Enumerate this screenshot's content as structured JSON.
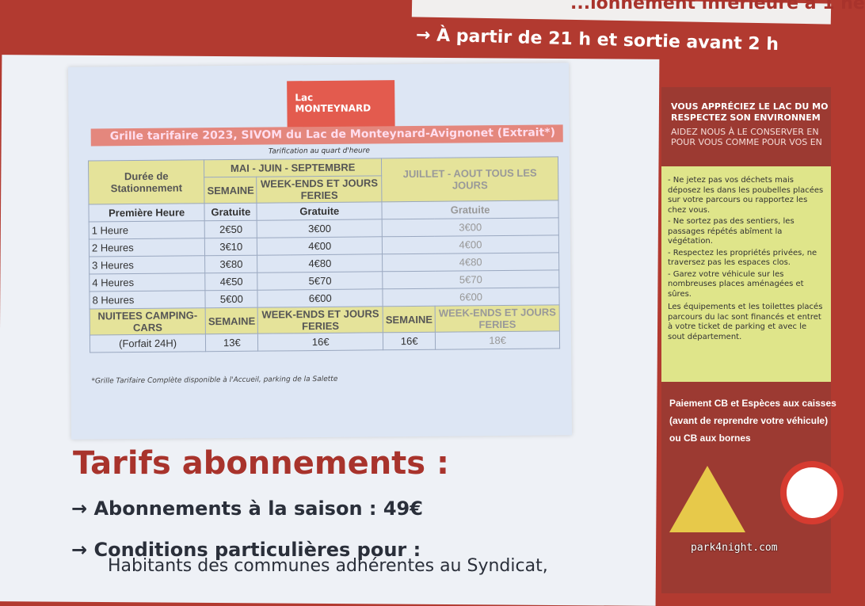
{
  "top": {
    "line1": "...ionnement inférieure à 1 he",
    "line2": "→ À partir de 21 h et sortie avant 2 h"
  },
  "sheet": {
    "logo": [
      "Lac",
      "MONTEYNARD"
    ],
    "title": "Grille tarifaire 2023, SIVOM du Lac de Monteynard-Avignonet (Extrait*)",
    "subtitle": "Tarification au quart d'heure",
    "h_duration": "Durée de Stationnement",
    "h_season1": "MAI - JUIN - SEPTEMBRE",
    "h_semaine": "SEMAINE",
    "h_weekend": "WEEK-ENDS ET JOURS FERIES",
    "h_season2": "JUILLET - AOUT TOUS LES JOURS",
    "rows": [
      [
        "Première Heure",
        "Gratuite",
        "Gratuite",
        "Gratuite"
      ],
      [
        "1 Heure",
        "2€50",
        "3€00",
        "3€00"
      ],
      [
        "2 Heures",
        "3€10",
        "4€00",
        "4€00"
      ],
      [
        "3 Heures",
        "3€80",
        "4€80",
        "4€80"
      ],
      [
        "4 Heures",
        "4€50",
        "5€70",
        "5€70"
      ],
      [
        "8 Heures",
        "5€00",
        "6€00",
        "6€00"
      ]
    ],
    "night_label": "NUITEES CAMPING-CARS",
    "night_forfait": "(Forfait 24H)",
    "night_prices": [
      "13€",
      "16€",
      "16€",
      "18€"
    ],
    "note": "*Grille Tarifaire Complète disponible à l'Accueil, parking de la Salette"
  },
  "bottom": {
    "title": "Tarifs abonnements :",
    "line1": "→ Abonnements à la saison : 49€",
    "line2": "→ Conditions particulières pour :",
    "line3": "Habitants des communes adhérentes au Syndicat,"
  },
  "right": {
    "h1": "VOUS APPRÉCIEZ LE LAC DU MO",
    "h2": "RESPECTEZ SON ENVIRONNEM",
    "s1": "AIDEZ NOUS À LE CONSERVER EN",
    "s2": "POUR VOUS COMME POUR VOS EN",
    "items": [
      "- Ne jetez pas vos déchets mais déposez les dans les poubelles placées sur votre parcours ou rapportez les chez vous.",
      "- Ne sortez pas des sentiers, les passages répétés abîment la végétation.",
      "- Respectez les propriétés privées, ne traversez pas les espaces clos.",
      "- Garez votre véhicule sur les nombreuses places aménagées et sûres."
    ],
    "para": "Les équipements et les toilettes placés parcours du lac sont financés et entret à votre ticket de parking et avec le sout département.",
    "pay": [
      "Paiement CB et Espèces aux caisses",
      "(avant de reprendre votre véhicule)",
      "ou CB aux bornes"
    ]
  },
  "watermark": "park4night.com"
}
